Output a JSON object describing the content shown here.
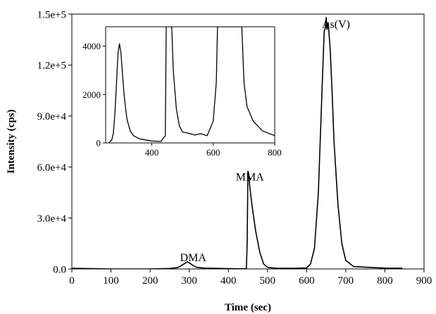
{
  "chart_data": [
    {
      "type": "line",
      "title": "",
      "xlabel": "Time (sec)",
      "ylabel": "Intensity (cps)",
      "xlim": [
        0,
        900
      ],
      "ylim": [
        0,
        150000
      ],
      "x_ticks": [
        0,
        100,
        200,
        300,
        400,
        500,
        600,
        700,
        800,
        900
      ],
      "y_ticks": [
        0,
        30000,
        60000,
        90000,
        120000,
        150000
      ],
      "x_tick_labels": [
        "0",
        "100",
        "200",
        "300",
        "400",
        "500",
        "600",
        "700",
        "800",
        "900"
      ],
      "y_tick_labels": [
        "0.0",
        "3.0e+4",
        "6.0e+4",
        "9.0e+4",
        "1.2e+5",
        "1.5e+5"
      ],
      "grid": false,
      "legend": "none",
      "series": [
        {
          "color": "#000000",
          "points": [
            [
              0,
              400
            ],
            [
              50,
              150
            ],
            [
              100,
              0
            ],
            [
              200,
              0
            ],
            [
              250,
              300
            ],
            [
              270,
              800
            ],
            [
              280,
              2000
            ],
            [
              290,
              3500
            ],
            [
              295,
              4200
            ],
            [
              300,
              3600
            ],
            [
              310,
              2000
            ],
            [
              320,
              900
            ],
            [
              340,
              500
            ],
            [
              400,
              200
            ],
            [
              440,
              100
            ],
            [
              446,
              300
            ],
            [
              448,
              15000
            ],
            [
              450,
              57500
            ],
            [
              452,
              56000
            ],
            [
              455,
              48000
            ],
            [
              460,
              38000
            ],
            [
              465,
              30000
            ],
            [
              470,
              22000
            ],
            [
              480,
              10000
            ],
            [
              490,
              3000
            ],
            [
              500,
              900
            ],
            [
              520,
              450
            ],
            [
              560,
              350
            ],
            [
              600,
              600
            ],
            [
              610,
              3000
            ],
            [
              620,
              12000
            ],
            [
              630,
              45000
            ],
            [
              640,
              110000
            ],
            [
              645,
              140000
            ],
            [
              648,
              142000
            ],
            [
              650,
              148000
            ],
            [
              652,
              141000
            ],
            [
              655,
              145000
            ],
            [
              660,
              130000
            ],
            [
              665,
              105000
            ],
            [
              670,
              75000
            ],
            [
              680,
              38000
            ],
            [
              690,
              15000
            ],
            [
              700,
              5000
            ],
            [
              720,
              1400
            ],
            [
              800,
              500
            ],
            [
              845,
              400
            ]
          ]
        }
      ],
      "annotations": [
        {
          "text": "DMA",
          "x": 310,
          "y": 4500
        },
        {
          "text": "MMA",
          "x": 455,
          "y": 52000
        },
        {
          "text": "As(V)",
          "x": 675,
          "y": 142000
        }
      ]
    },
    {
      "type": "line",
      "title": "",
      "xlabel": "",
      "ylabel": "",
      "xlim": [
        250,
        800
      ],
      "ylim": [
        0,
        4800
      ],
      "x_ticks": [
        400,
        600,
        800
      ],
      "y_ticks": [
        0,
        2000,
        4000
      ],
      "x_tick_labels": [
        "400",
        "600",
        "800"
      ],
      "y_tick_labels": [
        "0",
        "2000",
        "4000"
      ],
      "grid": false,
      "legend": "none",
      "series": [
        {
          "color": "#000000",
          "points": [
            [
              260,
              0
            ],
            [
              270,
              120
            ],
            [
              275,
              400
            ],
            [
              280,
              1200
            ],
            [
              285,
              2400
            ],
            [
              290,
              3700
            ],
            [
              295,
              4100
            ],
            [
              300,
              3700
            ],
            [
              305,
              2800
            ],
            [
              310,
              2000
            ],
            [
              315,
              1400
            ],
            [
              320,
              950
            ],
            [
              330,
              500
            ],
            [
              340,
              300
            ],
            [
              360,
              170
            ],
            [
              400,
              80
            ],
            [
              430,
              60
            ],
            [
              444,
              300
            ],
            [
              447,
              4800
            ],
            [
              465,
              4800
            ],
            [
              470,
              3000
            ],
            [
              480,
              1400
            ],
            [
              490,
              700
            ],
            [
              500,
              450
            ],
            [
              520,
              400
            ],
            [
              540,
              330
            ],
            [
              560,
              380
            ],
            [
              580,
              300
            ],
            [
              600,
              900
            ],
            [
              610,
              2500
            ],
            [
              614,
              4800
            ],
            [
              693,
              4800
            ],
            [
              700,
              2500
            ],
            [
              710,
              1500
            ],
            [
              730,
              900
            ],
            [
              760,
              500
            ],
            [
              800,
              300
            ]
          ]
        }
      ]
    }
  ]
}
